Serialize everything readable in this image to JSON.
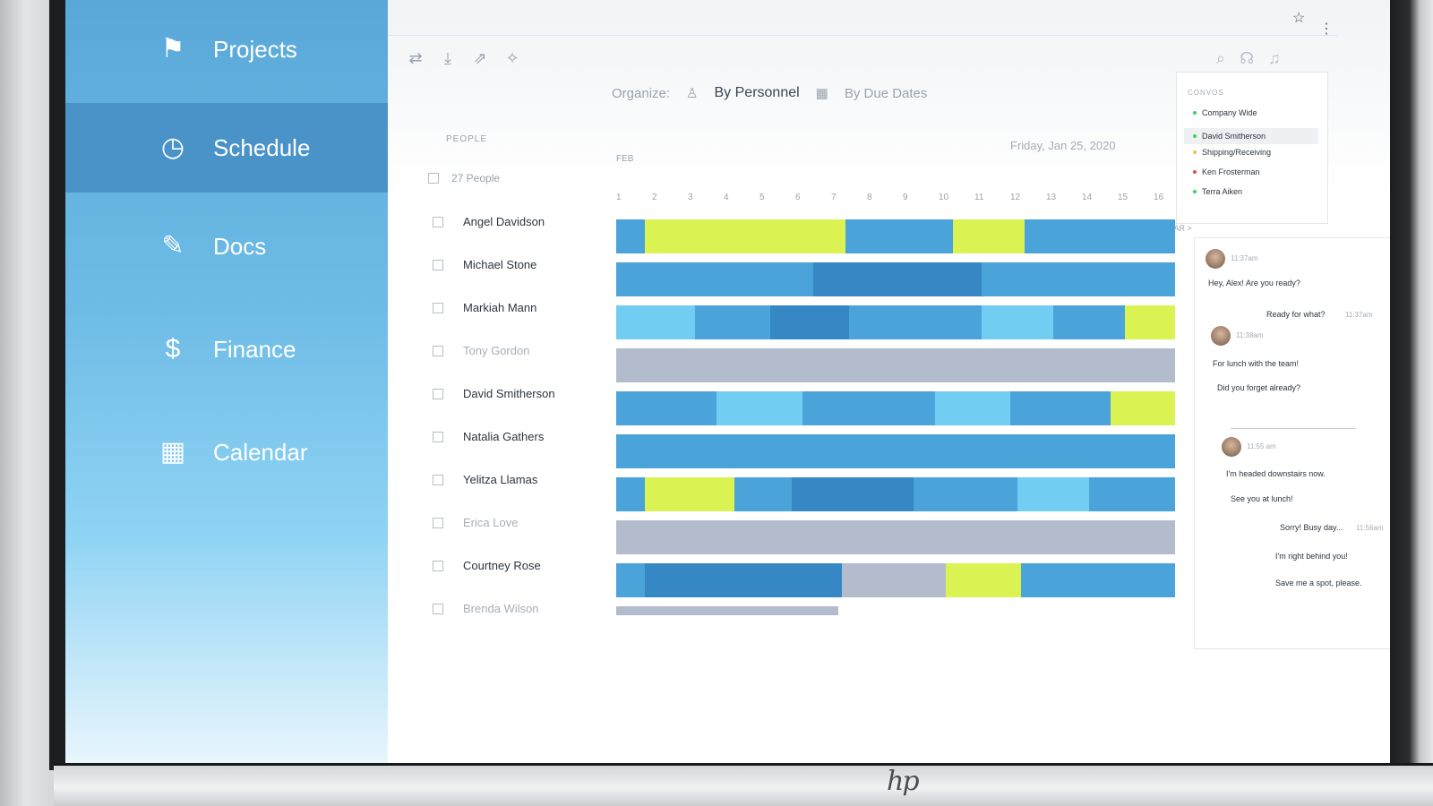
{
  "nav": {
    "items": [
      {
        "label": "Projects",
        "icon": "projects-icon",
        "glyph": "⚑",
        "active": false
      },
      {
        "label": "Schedule",
        "icon": "clock-24-icon",
        "glyph": "◷",
        "active": true
      },
      {
        "label": "Docs",
        "icon": "docs-sign-icon",
        "glyph": "✎",
        "active": false
      },
      {
        "label": "Finance",
        "icon": "dollar-icon",
        "glyph": "$",
        "active": false
      },
      {
        "label": "Calendar",
        "icon": "calendar-icon",
        "glyph": "▦",
        "active": false
      }
    ]
  },
  "organize": {
    "label": "Organize:",
    "by_personnel": "By Personnel",
    "by_due_dates": "By Due Dates"
  },
  "date_label": "Friday, Jan 25, 2020",
  "table": {
    "people_header": "PEOPLE",
    "month": "FEB",
    "next_month": "MAR >",
    "count": "27 People",
    "days": [
      "1",
      "2",
      "3",
      "4",
      "5",
      "6",
      "7",
      "8",
      "9",
      "10",
      "11",
      "12",
      "13",
      "14",
      "15",
      "16"
    ]
  },
  "people": [
    {
      "name": "Angel Davidson",
      "muted": false
    },
    {
      "name": "Michael Stone",
      "muted": false
    },
    {
      "name": "Markiah Mann",
      "muted": false
    },
    {
      "name": "Tony Gordon",
      "muted": true
    },
    {
      "name": "David Smitherson",
      "muted": false
    },
    {
      "name": "Natalia Gathers",
      "muted": false
    },
    {
      "name": "Yelitza Llamas",
      "muted": false
    },
    {
      "name": "Erica Love",
      "muted": true
    },
    {
      "name": "Courtney Rose",
      "muted": false
    },
    {
      "name": "Brenda Wilson",
      "muted": true
    }
  ],
  "gantt_colors": {
    "mid": "#4aa3d9",
    "dark": "#3588c4",
    "light": "#72cdf3",
    "lime": "#dbf253",
    "gray": "#b3bccd"
  },
  "gantt": [
    [
      [
        "mid",
        1,
        1.8
      ],
      [
        "lime",
        1.8,
        7.4
      ],
      [
        "mid",
        7.4,
        10.4
      ],
      [
        "lime",
        10.4,
        12.4
      ],
      [
        "mid",
        12.4,
        16.6
      ]
    ],
    [
      [
        "mid",
        1,
        6.5
      ],
      [
        "dark",
        6.5,
        11.2
      ],
      [
        "mid",
        11.2,
        16.6
      ]
    ],
    [
      [
        "light",
        1,
        3.2
      ],
      [
        "mid",
        3.2,
        5.3
      ],
      [
        "dark",
        5.3,
        7.5
      ],
      [
        "mid",
        7.5,
        11.2
      ],
      [
        "light",
        11.2,
        13.2
      ],
      [
        "mid",
        13.2,
        15.2
      ],
      [
        "lime",
        15.2,
        16.6
      ]
    ],
    [
      [
        "gray",
        1,
        16.6
      ]
    ],
    [
      [
        "mid",
        1,
        3.8
      ],
      [
        "light",
        3.8,
        6.2
      ],
      [
        "mid",
        6.2,
        9.9
      ],
      [
        "light",
        9.9,
        12
      ],
      [
        "mid",
        12,
        14.8
      ],
      [
        "lime",
        14.8,
        16.6
      ]
    ],
    [
      [
        "mid",
        1,
        16.6
      ]
    ],
    [
      [
        "mid",
        1,
        1.8
      ],
      [
        "lime",
        1.8,
        4.3
      ],
      [
        "mid",
        4.3,
        5.9
      ],
      [
        "dark",
        5.9,
        9.3
      ],
      [
        "mid",
        9.3,
        12.2
      ],
      [
        "light",
        12.2,
        14.2
      ],
      [
        "mid",
        14.2,
        16.6
      ]
    ],
    [
      [
        "gray",
        1,
        16.6
      ]
    ],
    [
      [
        "mid",
        1,
        1.8
      ],
      [
        "dark",
        1.8,
        7.3
      ],
      [
        "gray",
        7.3,
        10.2
      ],
      [
        "lime",
        10.2,
        12.3
      ],
      [
        "mid",
        12.3,
        16.6
      ]
    ],
    [
      [
        "gray",
        1,
        7.2
      ]
    ]
  ],
  "chat": {
    "convos_title": "CONVOS",
    "convos": [
      {
        "name": "Company Wide",
        "dot": "#3ccf6a",
        "selected": false
      },
      {
        "name": "David Smitherson",
        "dot": "#3ccf6a",
        "selected": true
      },
      {
        "name": "Shipping/Receiving",
        "dot": "#f0c24b",
        "selected": false
      },
      {
        "name": "Ken Frosterman",
        "dot": "#e0504b",
        "selected": false
      },
      {
        "name": "Terra Aiken",
        "dot": "#3ccf6a",
        "selected": false
      }
    ],
    "time1": "11:37am",
    "msg1": "Hey, Alex! Are you ready?",
    "reply1": "Ready for what?",
    "reply1_time": "11:37am",
    "time2": "11:38am",
    "msg2": "For lunch with the team!",
    "msg3": "Did you forget already?",
    "time3": "11:55 am",
    "msg4": "I'm headed downstairs now.",
    "msg5": "See you at lunch!",
    "reply2": "Sorry! Busy day...",
    "reply2_time": "11:56am",
    "reply3": "I'm right behind you!",
    "reply4": "Save me a spot, please."
  },
  "brand": "hp"
}
